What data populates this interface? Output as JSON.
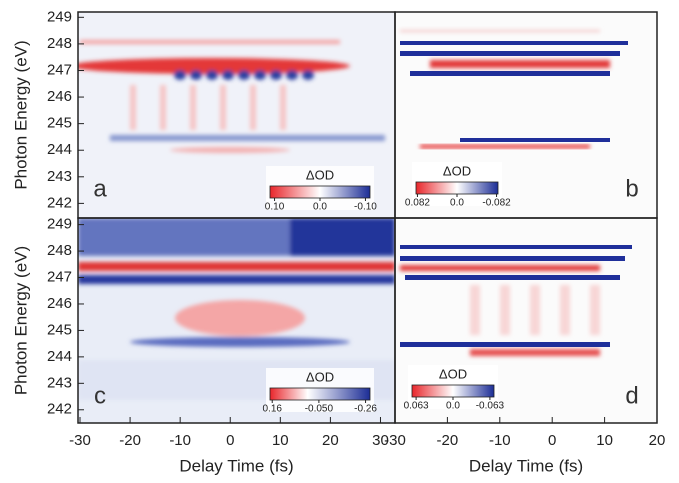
{
  "chart_data": [
    {
      "type": "heatmap",
      "annotation": "a",
      "ylabel": "Photon Energy (eV)",
      "xlim": [
        -30.4,
        32.9
      ],
      "ylim": [
        241.45,
        249.2
      ],
      "yticks": [
        242,
        243,
        244,
        245,
        246,
        247,
        248,
        249
      ],
      "colorbar": {
        "label": "ΔOD",
        "clim": [
          0.11,
          -0.11
        ],
        "ticks": [
          {
            "value": 0.1,
            "label": "0.10"
          },
          {
            "value": 0,
            "label": "0.0"
          },
          {
            "value": -0.1,
            "label": "-0.10"
          }
        ]
      }
    },
    {
      "type": "heatmap",
      "annotation": "b",
      "xlim": [
        -30,
        20
      ],
      "ylim": [
        241.45,
        249.2
      ],
      "colorbar": {
        "label": "ΔOD",
        "clim": [
          0.085,
          -0.085
        ],
        "ticks": [
          0.082,
          {
            "value": 0,
            "label": "0.0"
          },
          -0.082
        ]
      }
    },
    {
      "type": "heatmap",
      "annotation": "c",
      "ylabel": "Photon Energy (eV)",
      "xlabel": "Delay Time (fs)",
      "xlim": [
        -30.4,
        32.9
      ],
      "ylim": [
        241.5,
        249.25
      ],
      "xticks": [
        -30,
        -20,
        -10,
        0,
        10,
        20,
        30
      ],
      "yticks": [
        242,
        243,
        244,
        245,
        246,
        247,
        248,
        249
      ],
      "colorbar": {
        "label": "ΔOD",
        "clim": [
          0.17,
          -0.28
        ],
        "ticks": [
          0.16,
          {
            "value": -0.05,
            "label": "-0.050"
          },
          -0.26
        ]
      }
    },
    {
      "type": "heatmap",
      "annotation": "d",
      "xlabel": "Delay Time (fs)",
      "xlim": [
        -30,
        20
      ],
      "ylim": [
        241.5,
        249.25
      ],
      "xticks": [
        -30,
        -20,
        -10,
        0,
        10,
        20
      ],
      "colorbar": {
        "label": "ΔOD",
        "clim": [
          0.07,
          -0.07
        ],
        "ticks": [
          0.063,
          {
            "value": 0,
            "label": "0.0"
          },
          -0.063
        ]
      }
    }
  ]
}
